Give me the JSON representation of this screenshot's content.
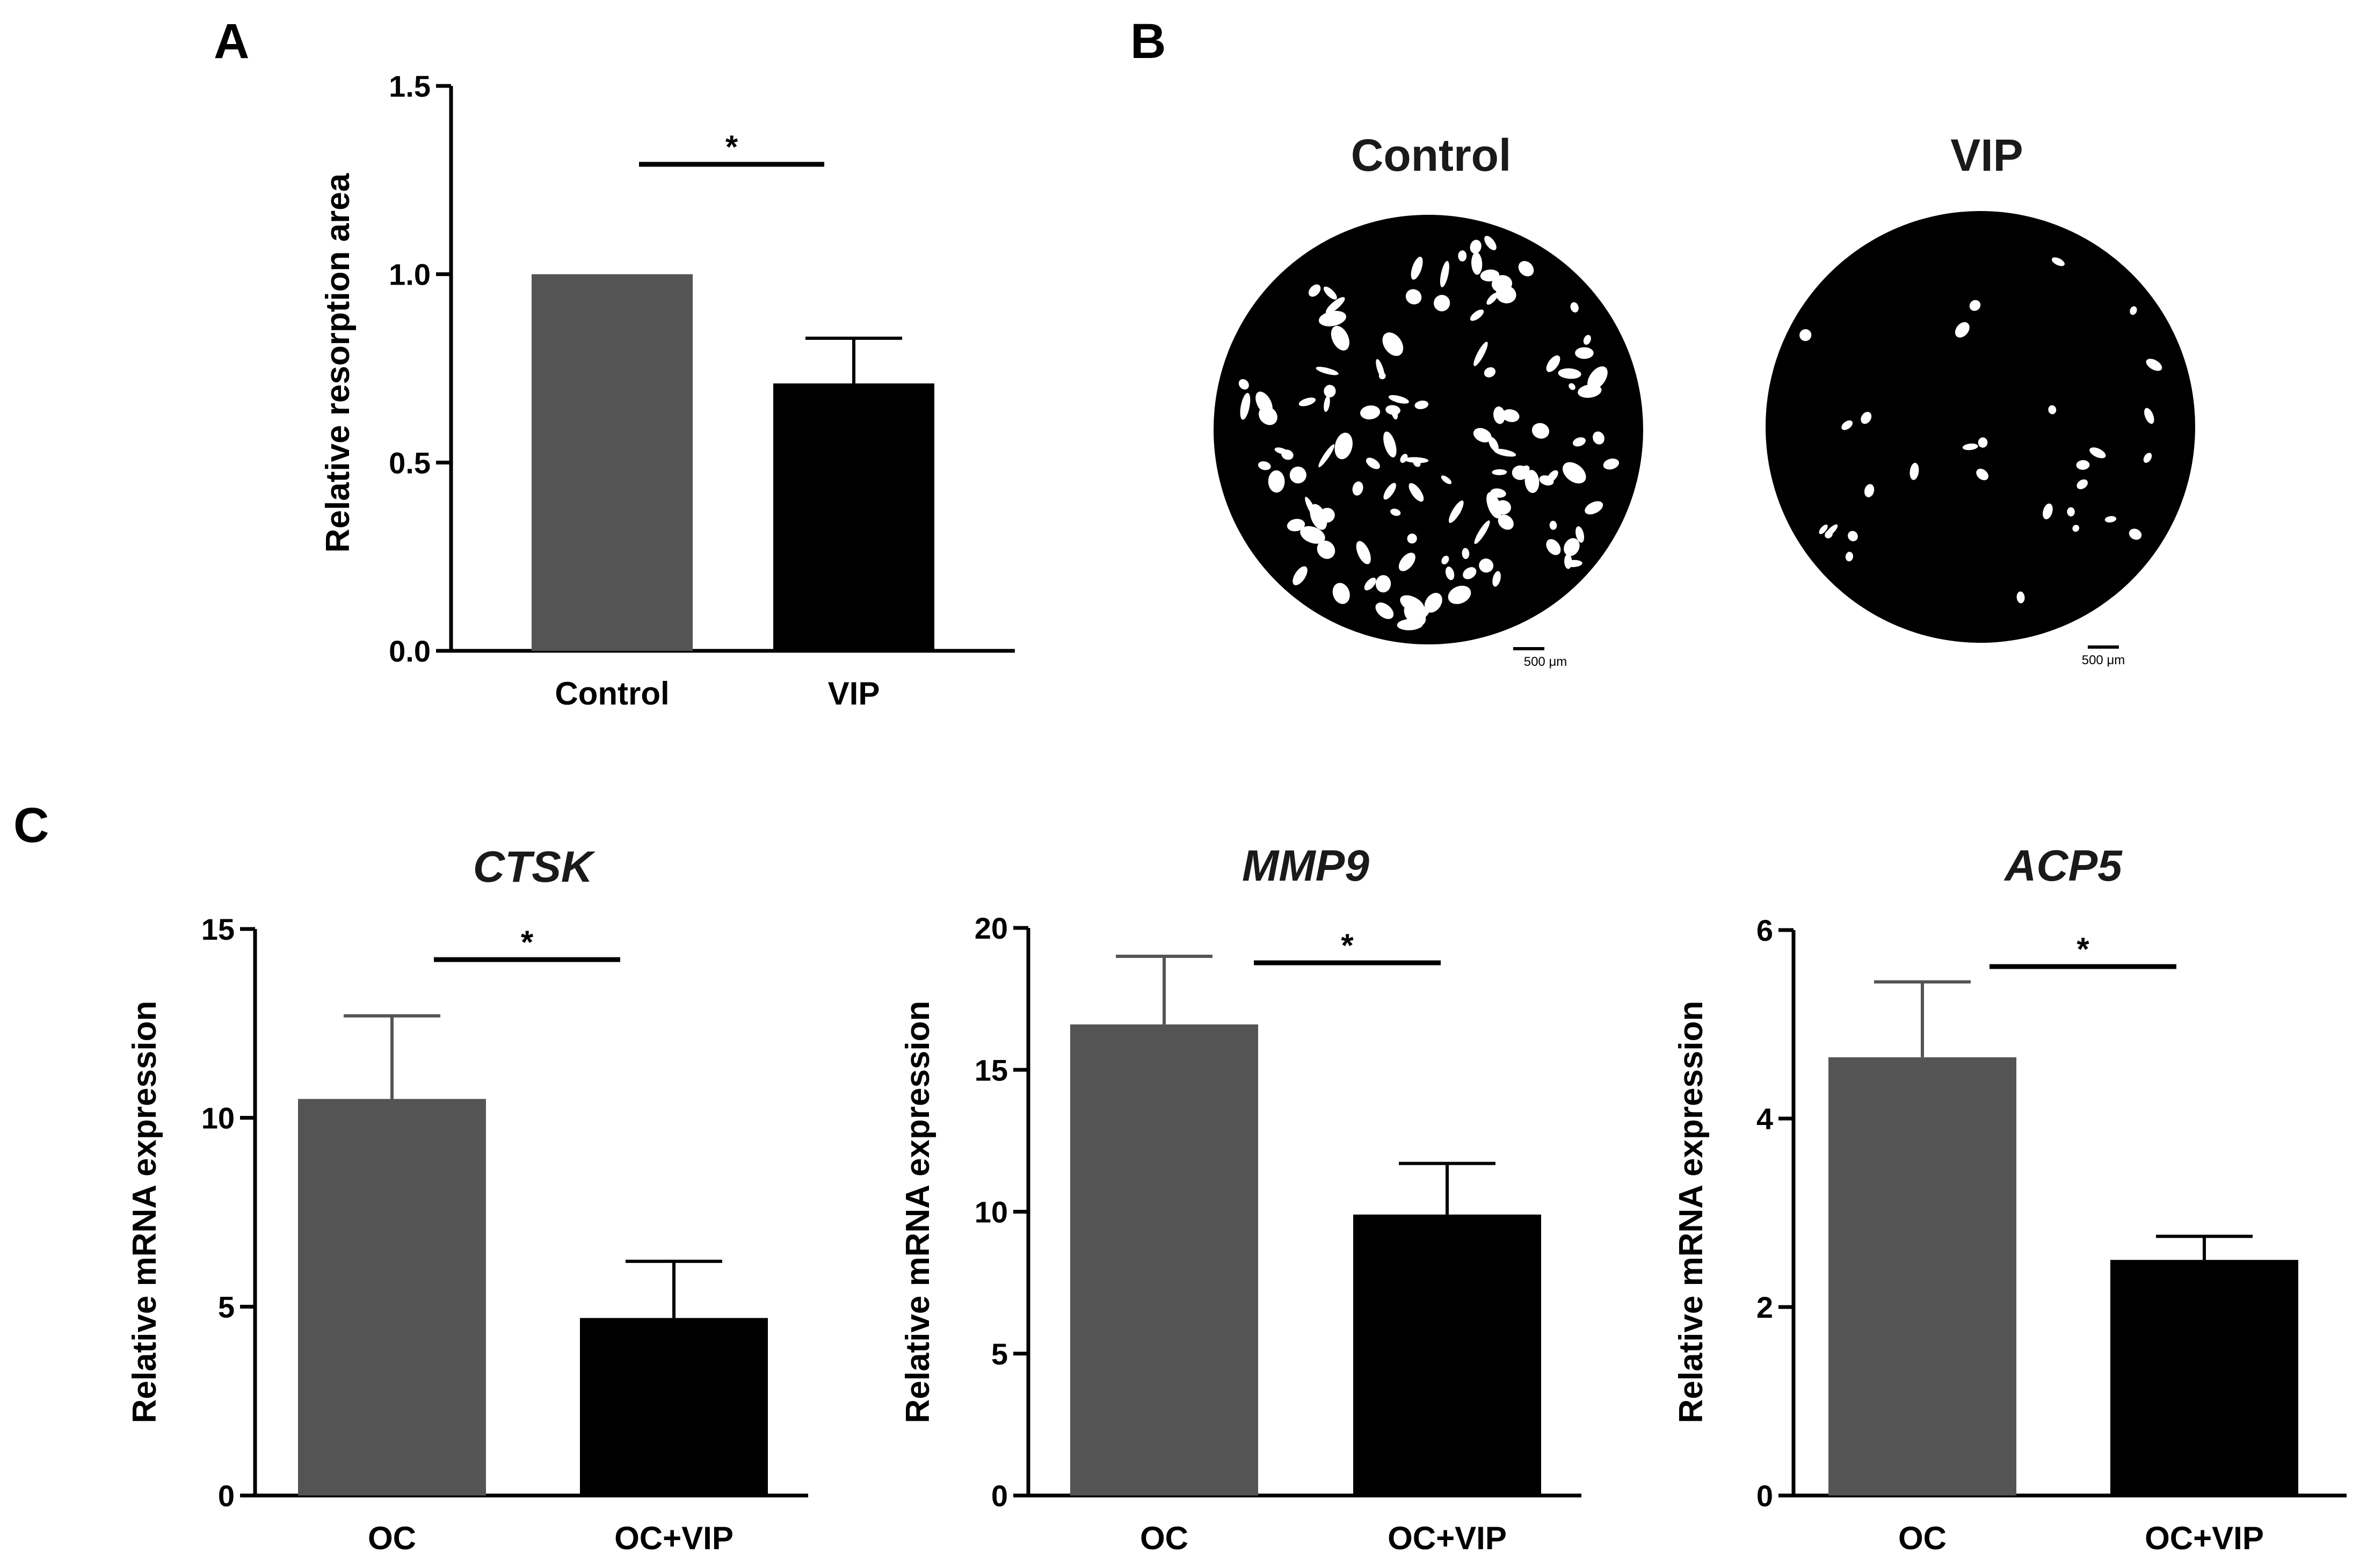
{
  "panels": {
    "A": {
      "letter": "A"
    },
    "B": {
      "letter": "B"
    },
    "C": {
      "letter": "C"
    }
  },
  "micrographs": [
    {
      "label": "Control",
      "scale_bar": "500 μm",
      "description": "resorption pit micrograph, many white pits"
    },
    {
      "label": "VIP",
      "scale_bar": "500 μm",
      "description": "resorption pit micrograph, few white pits"
    }
  ],
  "colors": {
    "bar_control": "#545454",
    "bar_treatment": "#000000",
    "axis": "#000000",
    "well": "#000000",
    "pit": "#ffffff"
  },
  "chart_data": [
    {
      "id": "A",
      "type": "bar",
      "title": "",
      "title_italic": false,
      "categories": [
        "Control",
        "VIP"
      ],
      "values": [
        1.0,
        0.71
      ],
      "errors": [
        0,
        0.12
      ],
      "ylabel": "Relative resorption area",
      "xlabel": "",
      "ylim": [
        0,
        1.5
      ],
      "yticks": [
        0,
        0.5,
        1.0,
        1.5
      ],
      "yticklabels": [
        "0.0",
        "0.5",
        "1.0",
        "1.5"
      ],
      "bar_colors": [
        "#545454",
        "#000000"
      ],
      "significance": "*"
    },
    {
      "id": "CTSK",
      "type": "bar",
      "title": "CTSK",
      "title_italic": true,
      "categories": [
        "OC",
        "OC+VIP"
      ],
      "values": [
        10.5,
        4.7
      ],
      "errors": [
        2.2,
        1.5
      ],
      "ylabel": "Relative mRNA expression",
      "xlabel": "",
      "ylim": [
        0,
        15
      ],
      "yticks": [
        0,
        5,
        10,
        15
      ],
      "yticklabels": [
        "0",
        "5",
        "10",
        "15"
      ],
      "bar_colors": [
        "#545454",
        "#000000"
      ],
      "significance": "*"
    },
    {
      "id": "MMP9",
      "type": "bar",
      "title": "MMP9",
      "title_italic": true,
      "categories": [
        "OC",
        "OC+VIP"
      ],
      "values": [
        16.6,
        9.9
      ],
      "errors": [
        2.4,
        1.8
      ],
      "ylabel": "Relative mRNA expression",
      "xlabel": "",
      "ylim": [
        0,
        20
      ],
      "yticks": [
        0,
        5,
        10,
        15,
        20
      ],
      "yticklabels": [
        "0",
        "5",
        "10",
        "15",
        "20"
      ],
      "bar_colors": [
        "#545454",
        "#000000"
      ],
      "significance": "*"
    },
    {
      "id": "ACP5",
      "type": "bar",
      "title": "ACP5",
      "title_italic": true,
      "categories": [
        "OC",
        "OC+VIP"
      ],
      "values": [
        4.65,
        2.5
      ],
      "errors": [
        0.8,
        0.25
      ],
      "ylabel": "Relative mRNA expression",
      "xlabel": "",
      "ylim": [
        0,
        6
      ],
      "yticks": [
        0,
        2,
        4,
        6
      ],
      "yticklabels": [
        "0",
        "2",
        "4",
        "6"
      ],
      "bar_colors": [
        "#545454",
        "#000000"
      ],
      "significance": "*"
    }
  ]
}
